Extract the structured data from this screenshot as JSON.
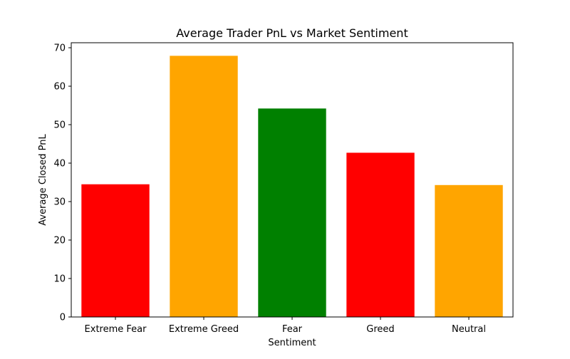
{
  "chart_data": {
    "type": "bar",
    "title": "Average Trader PnL vs Market Sentiment",
    "xlabel": "Sentiment",
    "ylabel": "Average Closed PnL",
    "categories": [
      "Extreme Fear",
      "Extreme Greed",
      "Fear",
      "Greed",
      "Neutral"
    ],
    "values": [
      34.5,
      67.9,
      54.2,
      42.7,
      34.3
    ],
    "bar_colors": [
      "#ff0000",
      "#ffa500",
      "#008000",
      "#ff0000",
      "#ffa500"
    ],
    "ylim": [
      0,
      71.3
    ],
    "yticks": [
      0,
      10,
      20,
      30,
      40,
      50,
      60,
      70
    ],
    "grid": false,
    "legend": false
  }
}
